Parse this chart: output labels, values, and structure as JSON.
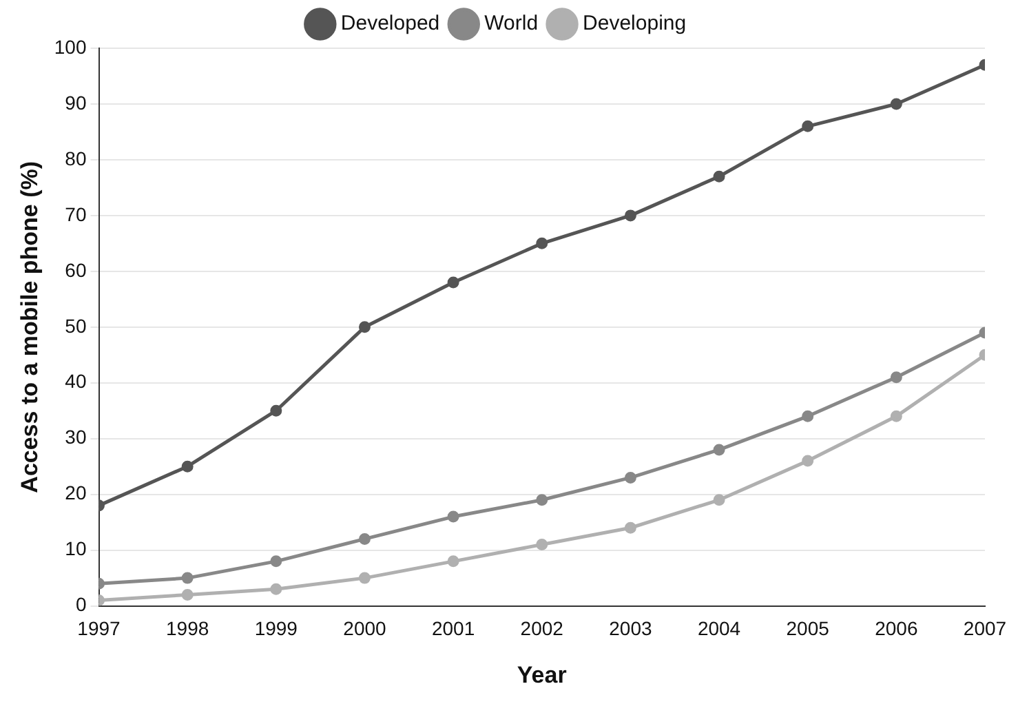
{
  "chart_data": {
    "type": "line",
    "xlabel": "Year",
    "ylabel": "Access to a mobile phone (%)",
    "x": [
      1997,
      1998,
      1999,
      2000,
      2001,
      2002,
      2003,
      2004,
      2005,
      2006,
      2007
    ],
    "series": [
      {
        "name": "Developed",
        "color": "#555555",
        "values": [
          18,
          25,
          35,
          50,
          58,
          65,
          70,
          77,
          86,
          90,
          97
        ]
      },
      {
        "name": "World",
        "color": "#888888",
        "values": [
          4,
          5,
          8,
          12,
          16,
          19,
          23,
          28,
          34,
          41,
          49
        ]
      },
      {
        "name": "Developing",
        "color": "#b0b0b0",
        "values": [
          1,
          2,
          3,
          5,
          8,
          11,
          14,
          19,
          26,
          34,
          45
        ]
      }
    ],
    "xlim": [
      1997,
      2007
    ],
    "xticks": [
      1997,
      1998,
      1999,
      2000,
      2001,
      2002,
      2003,
      2004,
      2005,
      2006,
      2007
    ],
    "ylim": [
      0,
      100
    ],
    "yticks": [
      0,
      10,
      20,
      30,
      40,
      50,
      60,
      70,
      80,
      90,
      100
    ],
    "grid": "y",
    "legend": "top",
    "marker": "circle",
    "line_style": "solid"
  }
}
